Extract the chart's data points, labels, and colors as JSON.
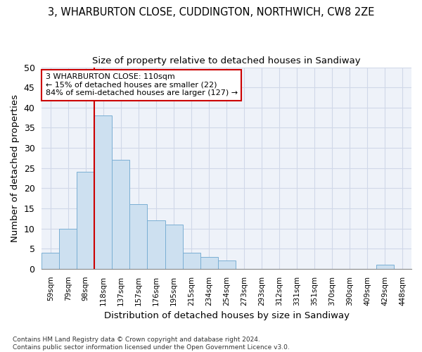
{
  "title1": "3, WHARBURTON CLOSE, CUDDINGTON, NORTHWICH, CW8 2ZE",
  "title2": "Size of property relative to detached houses in Sandiway",
  "xlabel": "Distribution of detached houses by size in Sandiway",
  "ylabel": "Number of detached properties",
  "bins": [
    "59sqm",
    "79sqm",
    "98sqm",
    "118sqm",
    "137sqm",
    "157sqm",
    "176sqm",
    "195sqm",
    "215sqm",
    "234sqm",
    "254sqm",
    "273sqm",
    "293sqm",
    "312sqm",
    "331sqm",
    "351sqm",
    "370sqm",
    "390sqm",
    "409sqm",
    "429sqm",
    "448sqm"
  ],
  "values": [
    4,
    10,
    24,
    38,
    27,
    16,
    12,
    11,
    4,
    3,
    2,
    0,
    0,
    0,
    0,
    0,
    0,
    0,
    0,
    1,
    0
  ],
  "bar_color": "#cde0f0",
  "bar_edge_color": "#7aafd4",
  "grid_color": "#d0d8e8",
  "bg_color": "#eef2f9",
  "annotation_text": "3 WHARBURTON CLOSE: 110sqm\n← 15% of detached houses are smaller (22)\n84% of semi-detached houses are larger (127) →",
  "annotation_box_color": "white",
  "annotation_border_color": "#cc0000",
  "footer": "Contains HM Land Registry data © Crown copyright and database right 2024.\nContains public sector information licensed under the Open Government Licence v3.0.",
  "ylim": [
    0,
    50
  ],
  "yticks": [
    0,
    5,
    10,
    15,
    20,
    25,
    30,
    35,
    40,
    45,
    50
  ],
  "red_line_bin_index": 3,
  "title1_fontsize": 10.5,
  "title2_fontsize": 9.5
}
